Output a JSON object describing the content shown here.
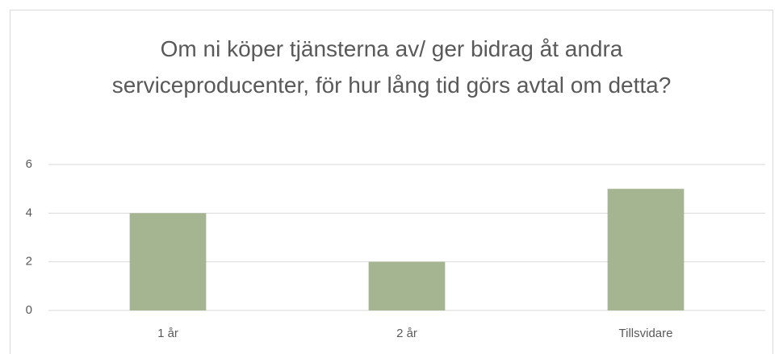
{
  "chart_data": {
    "type": "bar",
    "title": "Om ni köper tjänsterna av/ ger bidrag åt andra serviceproducenter, för hur lång tid görs avtal om detta?",
    "categories": [
      "1 år",
      "2 år",
      "Tillsvidare"
    ],
    "values": [
      4,
      2,
      5
    ],
    "color": "#a5b592",
    "ylim": [
      0,
      6
    ],
    "yticks": [
      0,
      2,
      4,
      6
    ],
    "grid": true
  }
}
